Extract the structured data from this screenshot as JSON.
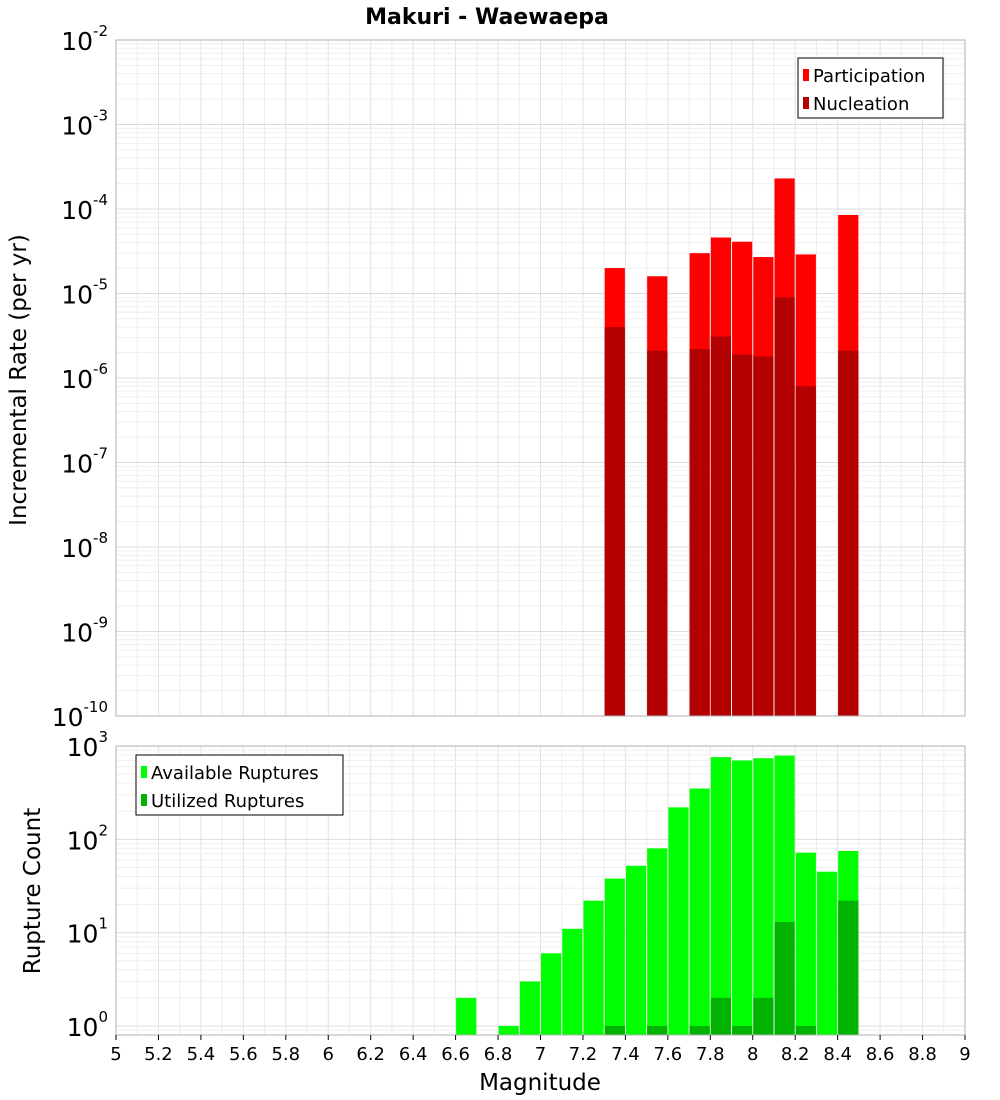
{
  "chart_data": [
    {
      "type": "bar",
      "title": "Makuri - Waewaepa",
      "xlabel": "",
      "ylabel": "Incremental Rate (per yr)",
      "yscale": "log",
      "xlim": [
        5,
        9
      ],
      "ylim": [
        1e-10,
        0.01
      ],
      "grid": true,
      "legend_position": "top-right",
      "bar_width": 0.095,
      "y_ticks": [
        {
          "base": "10",
          "exp": "-2",
          "value": 0.01
        },
        {
          "base": "10",
          "exp": "-3",
          "value": 0.001
        },
        {
          "base": "10",
          "exp": "-4",
          "value": 0.0001
        },
        {
          "base": "10",
          "exp": "-5",
          "value": 1e-05
        },
        {
          "base": "10",
          "exp": "-6",
          "value": 1e-06
        },
        {
          "base": "10",
          "exp": "-7",
          "value": 1e-07
        },
        {
          "base": "10",
          "exp": "-8",
          "value": 1e-08
        },
        {
          "base": "10",
          "exp": "-9",
          "value": 1e-09
        },
        {
          "base": "10",
          "exp": "-10",
          "value": 1e-10
        }
      ],
      "x": [
        7.35,
        7.55,
        7.75,
        7.85,
        7.95,
        8.05,
        8.15,
        8.25,
        8.45
      ],
      "series": [
        {
          "name": "Participation",
          "color": "#ff0000",
          "values": [
            2e-05,
            1.6e-05,
            3e-05,
            4.6e-05,
            4.1e-05,
            2.7e-05,
            0.00023,
            2.9e-05,
            8.5e-05
          ]
        },
        {
          "name": "Nucleation",
          "color": "#b30000",
          "values": [
            4e-06,
            2.1e-06,
            2.2e-06,
            3.1e-06,
            1.9e-06,
            1.8e-06,
            9e-06,
            8e-07,
            2.1e-06
          ]
        }
      ]
    },
    {
      "type": "bar",
      "title": "",
      "xlabel": "Magnitude",
      "ylabel": "Rupture Count",
      "yscale": "log",
      "xlim": [
        5,
        9
      ],
      "ylim": [
        0.8,
        1000
      ],
      "grid": true,
      "legend_position": "top-left",
      "bar_width": 0.095,
      "x_ticks": [
        "5",
        "5.2",
        "5.4",
        "5.6",
        "5.8",
        "6",
        "6.2",
        "6.4",
        "6.6",
        "6.8",
        "7",
        "7.2",
        "7.4",
        "7.6",
        "7.8",
        "8",
        "8.2",
        "8.4",
        "8.6",
        "8.8",
        "9"
      ],
      "y_ticks": [
        {
          "base": "10",
          "exp": "3",
          "value": 1000
        },
        {
          "base": "10",
          "exp": "2",
          "value": 100
        },
        {
          "base": "10",
          "exp": "1",
          "value": 10
        },
        {
          "base": "10",
          "exp": "0",
          "value": 1
        }
      ],
      "series": [
        {
          "name": "Available Ruptures",
          "color": "#00ff00",
          "x": [
            6.65,
            6.85,
            6.95,
            7.05,
            7.15,
            7.25,
            7.35,
            7.45,
            7.55,
            7.65,
            7.75,
            7.85,
            7.95,
            8.05,
            8.15,
            8.25,
            8.35,
            8.45
          ],
          "values": [
            2,
            1,
            3,
            6,
            11,
            22,
            38,
            52,
            80,
            220,
            350,
            760,
            700,
            740,
            790,
            72,
            45,
            75
          ]
        },
        {
          "name": "Utilized Ruptures",
          "color": "#00b300",
          "x": [
            7.35,
            7.55,
            7.75,
            7.85,
            7.95,
            8.05,
            8.15,
            8.25,
            8.45
          ],
          "values": [
            1,
            1,
            1,
            2,
            1,
            2,
            13,
            1,
            22
          ]
        }
      ]
    }
  ]
}
